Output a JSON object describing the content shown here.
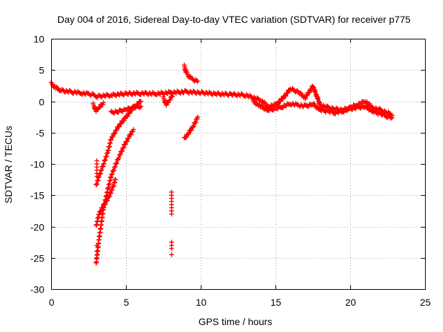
{
  "chart_data": {
    "type": "scatter",
    "title": "Day 004 of 2016, Sidereal Day-to-day VTEC variation (SDTVAR) for receiver p775",
    "xlabel": "GPS time / hours",
    "ylabel": "SDTVAR / TECUs",
    "xlim": [
      0,
      25
    ],
    "ylim": [
      -30,
      10
    ],
    "xticks": [
      0,
      5,
      10,
      15,
      20,
      25
    ],
    "yticks": [
      -30,
      -25,
      -20,
      -15,
      -10,
      -5,
      0,
      5,
      10
    ],
    "grid": true,
    "legend": "none",
    "marker": "plus",
    "color": "#ff0000",
    "series": [
      {
        "name": "main_band",
        "x": [
          0.0,
          0.3,
          0.6,
          1.0,
          1.5,
          2.0,
          2.5,
          2.8,
          3.1,
          4.0,
          5.0,
          6.0,
          7.0,
          8.0,
          9.0,
          10.0,
          11.0,
          12.0,
          13.0,
          14.0,
          14.5,
          15.0,
          15.5,
          16.0,
          16.5,
          17.0,
          17.5,
          18.0,
          18.5,
          19.0,
          19.5,
          20.0,
          20.5,
          21.0,
          21.5,
          22.0,
          22.5,
          22.8
        ],
        "y": [
          2.8,
          2.2,
          1.8,
          1.6,
          1.5,
          1.3,
          1.2,
          1.0,
          0.8,
          1.0,
          1.2,
          1.3,
          1.2,
          1.4,
          1.5,
          1.4,
          1.2,
          1.1,
          1.0,
          0.2,
          -0.8,
          -0.6,
          0.5,
          2.0,
          1.5,
          0.6,
          2.4,
          -0.6,
          -1.0,
          -1.2,
          -1.4,
          -1.0,
          -0.5,
          0.0,
          -1.0,
          -1.4,
          -1.8,
          -2.2
        ]
      },
      {
        "name": "main_band_lower",
        "x": [
          13.5,
          14.0,
          14.5,
          15.0,
          15.5,
          16.0,
          16.5,
          17.0,
          17.5,
          18.0,
          18.5,
          19.0,
          19.5,
          20.0,
          20.5,
          21.0,
          21.5,
          22.0,
          22.5,
          22.8
        ],
        "y": [
          0.0,
          -0.8,
          -1.4,
          -1.2,
          -0.8,
          -0.4,
          -0.6,
          -0.8,
          -0.4,
          -1.4,
          -1.6,
          -1.8,
          -1.6,
          -1.2,
          -1.0,
          -0.8,
          -1.6,
          -2.0,
          -2.4,
          -2.6
        ]
      },
      {
        "name": "arc_upper",
        "x": [
          3.0,
          3.2,
          3.5,
          3.8,
          4.0,
          4.5,
          5.0,
          5.5,
          6.0
        ],
        "y": [
          -13.5,
          -12.0,
          -10.0,
          -8.0,
          -6.0,
          -4.0,
          -2.5,
          -1.0,
          0.0
        ]
      },
      {
        "name": "arc_middle",
        "x": [
          3.0,
          3.2,
          3.5,
          3.8,
          4.0,
          4.5,
          5.0,
          5.5
        ],
        "y": [
          -26.0,
          -22.0,
          -17.0,
          -14.0,
          -12.0,
          -9.0,
          -6.5,
          -4.5
        ]
      },
      {
        "name": "arc_lower",
        "x": [
          3.0,
          3.2,
          3.4,
          3.7,
          4.0,
          4.3
        ],
        "y": [
          -20.0,
          -18.0,
          -17.0,
          -16.0,
          -14.5,
          -12.5
        ]
      },
      {
        "name": "branch_a",
        "x": [
          2.8,
          3.0,
          3.2,
          3.5
        ],
        "y": [
          -0.5,
          -1.5,
          -1.0,
          -0.2
        ]
      },
      {
        "name": "branch_b",
        "x": [
          4.0,
          4.5,
          5.0,
          5.5,
          6.0
        ],
        "y": [
          -1.8,
          -1.6,
          -1.3,
          -1.0,
          -0.8
        ]
      },
      {
        "name": "cluster_3",
        "x": [
          3.05,
          3.05,
          3.05,
          3.05,
          3.05,
          3.05,
          3.05,
          3.05,
          3.05
        ],
        "y": [
          -9.5,
          -10.0,
          -10.5,
          -11.0,
          -11.5,
          -12.0,
          -23.0,
          -24.0,
          -25.0
        ]
      },
      {
        "name": "cluster_8",
        "x": [
          8.05,
          8.05,
          8.05,
          8.05,
          8.05,
          8.05,
          8.05,
          8.05,
          8.05,
          8.05,
          8.05,
          8.05
        ],
        "y": [
          -14.5,
          -15.0,
          -15.5,
          -16.0,
          -16.5,
          -17.0,
          -17.5,
          -18.0,
          -22.5,
          -23.0,
          -23.5,
          -24.5
        ]
      },
      {
        "name": "segment_9a",
        "x": [
          8.9,
          9.0,
          9.2,
          9.4,
          9.6,
          9.8
        ],
        "y": [
          5.6,
          4.8,
          4.0,
          3.6,
          3.4,
          3.2
        ]
      },
      {
        "name": "segment_9b",
        "x": [
          8.9,
          9.2,
          9.5,
          9.8
        ],
        "y": [
          -6.0,
          -5.0,
          -4.0,
          -2.5
        ]
      },
      {
        "name": "tail_cluster_7_8",
        "x": [
          7.5,
          7.7,
          7.9,
          8.1
        ],
        "y": [
          0.5,
          -0.5,
          0.2,
          0.8
        ]
      }
    ]
  }
}
